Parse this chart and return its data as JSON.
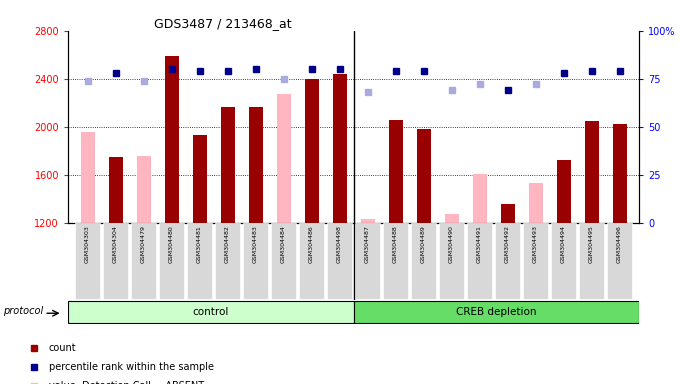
{
  "title": "GDS3487 / 213468_at",
  "samples": [
    "GSM304303",
    "GSM304304",
    "GSM304479",
    "GSM304480",
    "GSM304481",
    "GSM304482",
    "GSM304483",
    "GSM304484",
    "GSM304486",
    "GSM304498",
    "GSM304487",
    "GSM304488",
    "GSM304489",
    "GSM304490",
    "GSM304491",
    "GSM304492",
    "GSM304493",
    "GSM304494",
    "GSM304495",
    "GSM304496"
  ],
  "count_values": [
    null,
    1750,
    null,
    2590,
    1930,
    2165,
    2165,
    null,
    2400,
    2440,
    null,
    2060,
    1980,
    null,
    null,
    1360,
    null,
    1720,
    2050,
    2020
  ],
  "count_absent": [
    1960,
    null,
    1760,
    null,
    null,
    null,
    null,
    2270,
    null,
    null,
    1230,
    null,
    null,
    1270,
    1610,
    null,
    1530,
    null,
    null,
    null
  ],
  "rank_present": [
    null,
    78,
    null,
    80,
    79,
    79,
    80,
    null,
    80,
    80,
    null,
    79,
    79,
    null,
    null,
    69,
    null,
    78,
    79,
    79
  ],
  "rank_absent": [
    74,
    null,
    74,
    null,
    null,
    null,
    null,
    75,
    null,
    null,
    68,
    null,
    null,
    69,
    72,
    null,
    72,
    null,
    null,
    null
  ],
  "control_count": 10,
  "creb_count": 10,
  "ylim_left": [
    1200,
    2800
  ],
  "ylim_right": [
    0,
    100
  ],
  "yticks_left": [
    1200,
    1600,
    2000,
    2400,
    2800
  ],
  "yticks_right": [
    0,
    25,
    50,
    75,
    100
  ],
  "ytick_labels_right": [
    "0",
    "25",
    "50",
    "75",
    "100%"
  ],
  "color_bar_present": "#990000",
  "color_bar_absent": "#ffb6c1",
  "color_rank_present": "#00008B",
  "color_rank_absent": "#aaaadd",
  "color_control_bg": "#ccffcc",
  "color_creb_bg": "#66dd66",
  "bar_width": 0.5
}
